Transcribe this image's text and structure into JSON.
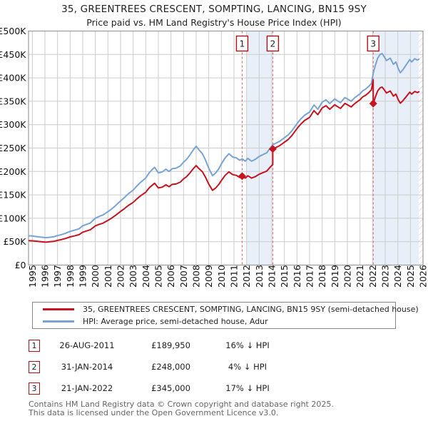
{
  "title": {
    "line1": "35, GREENTREES CRESCENT, SOMPTING, LANCING, BN15 9SY",
    "line2": "Price paid vs. HM Land Registry's House Price Index (HPI)"
  },
  "legend": {
    "items": [
      {
        "label": "35, GREENTREES CRESCENT, SOMPTING, LANCING, BN15 9SY (semi-detached house)",
        "color": "#c7131f"
      },
      {
        "label": "HPI: Average price, semi-detached house, Adur",
        "color": "#77a3d5"
      }
    ]
  },
  "transactions": [
    {
      "num": "1",
      "date": "26-AUG-2011",
      "price": "£189,950",
      "hpi_delta": "16% ↓ HPI"
    },
    {
      "num": "2",
      "date": "31-JAN-2014",
      "price": "£248,000",
      "hpi_delta": "4% ↓ HPI"
    },
    {
      "num": "3",
      "date": "21-JAN-2022",
      "price": "£345,000",
      "hpi_delta": "17% ↓ HPI"
    }
  ],
  "footer": {
    "line1": "Contains HM Land Registry data © Crown copyright and database right 2025.",
    "line2": "This data is licensed under the Open Government Licence v3.0."
  },
  "chart_data": {
    "type": "line",
    "title": "35, GREENTREES CRESCENT, SOMPTING, LANCING, BN15 9SY — Price paid vs. HPI",
    "x_min": 1994.7,
    "x_max": 2026,
    "y_min": 0,
    "y_max": 500,
    "y_unit": "£K",
    "x_ticks": [
      1995,
      1996,
      1997,
      1998,
      1999,
      2000,
      2001,
      2002,
      2003,
      2004,
      2005,
      2006,
      2007,
      2008,
      2009,
      2010,
      2011,
      2012,
      2013,
      2014,
      2015,
      2016,
      2017,
      2018,
      2019,
      2020,
      2021,
      2022,
      2023,
      2024,
      2025,
      2026
    ],
    "y_ticks": [
      {
        "value": 0,
        "label": "£0"
      },
      {
        "value": 50,
        "label": "£50K"
      },
      {
        "value": 100,
        "label": "£100K"
      },
      {
        "value": 150,
        "label": "£150K"
      },
      {
        "value": 200,
        "label": "£200K"
      },
      {
        "value": 250,
        "label": "£250K"
      },
      {
        "value": 300,
        "label": "£300K"
      },
      {
        "value": 350,
        "label": "£350K"
      },
      {
        "value": 400,
        "label": "£400K"
      },
      {
        "value": 450,
        "label": "£450K"
      },
      {
        "value": 500,
        "label": "£500K"
      }
    ],
    "grid": true,
    "legend_position": "bottom",
    "shaded_bands": [
      [
        2012.0,
        2014.08
      ],
      [
        2022.05,
        2025.67
      ]
    ],
    "hatch_band": [
      2025.67,
      2026
    ],
    "colors": {
      "price_line": "#c7131f",
      "hpi_line": "#77a3d5",
      "sale_dash": "#e05c5c",
      "band_fill": "#e9eff9",
      "grid": "#cccccc",
      "border": "#999999",
      "marker_box_border": "#b01116"
    },
    "sales": [
      {
        "label": "1",
        "year": 2011.65,
        "price_k": 189.95
      },
      {
        "label": "2",
        "year": 2014.08,
        "price_k": 248
      },
      {
        "label": "3",
        "year": 2022.05,
        "price_k": 345
      }
    ],
    "series": [
      {
        "name": "35, GREENTREES CRESCENT, SOMPTING, LANCING, BN15 9SY (semi-detached house)",
        "color": "#c7131f",
        "points": [
          [
            1994.75,
            52.3
          ],
          [
            1995.0,
            51.9
          ],
          [
            1995.3,
            51.0
          ],
          [
            1995.6,
            50.2
          ],
          [
            1995.9,
            49.4
          ],
          [
            1996.1,
            49.0
          ],
          [
            1996.4,
            49.8
          ],
          [
            1996.7,
            50.6
          ],
          [
            1997.0,
            52.7
          ],
          [
            1997.3,
            54.4
          ],
          [
            1997.6,
            56.5
          ],
          [
            1998.0,
            60.2
          ],
          [
            1998.4,
            62.8
          ],
          [
            1998.7,
            64.9
          ],
          [
            1999.0,
            70.3
          ],
          [
            1999.3,
            72.8
          ],
          [
            1999.6,
            75.3
          ],
          [
            2000.0,
            83.7
          ],
          [
            2000.3,
            87.0
          ],
          [
            2000.6,
            89.5
          ],
          [
            2001.0,
            95.4
          ],
          [
            2001.3,
            100.4
          ],
          [
            2001.6,
            106.3
          ],
          [
            2002.0,
            114.6
          ],
          [
            2002.3,
            120.5
          ],
          [
            2002.6,
            127.2
          ],
          [
            2003.0,
            133.9
          ],
          [
            2003.3,
            141.4
          ],
          [
            2003.6,
            148.1
          ],
          [
            2004.0,
            155.6
          ],
          [
            2004.3,
            165.7
          ],
          [
            2004.7,
            174.9
          ],
          [
            2005.0,
            164.8
          ],
          [
            2005.3,
            166.5
          ],
          [
            2005.6,
            171.5
          ],
          [
            2005.85,
            167.4
          ],
          [
            2006.1,
            172.4
          ],
          [
            2006.4,
            173.2
          ],
          [
            2006.75,
            177.4
          ],
          [
            2007.0,
            184.1
          ],
          [
            2007.25,
            189.1
          ],
          [
            2007.5,
            196.6
          ],
          [
            2007.8,
            206.7
          ],
          [
            2008.0,
            212.5
          ],
          [
            2008.2,
            206.7
          ],
          [
            2008.5,
            199.2
          ],
          [
            2008.75,
            187.4
          ],
          [
            2009.0,
            173.2
          ],
          [
            2009.3,
            159.8
          ],
          [
            2009.55,
            164.8
          ],
          [
            2009.8,
            172.4
          ],
          [
            2010.0,
            180.7
          ],
          [
            2010.3,
            191.6
          ],
          [
            2010.6,
            199.2
          ],
          [
            2010.9,
            193.3
          ],
          [
            2011.2,
            191.6
          ],
          [
            2011.45,
            187.4
          ],
          [
            2011.65,
            189.95
          ],
          [
            2011.9,
            185.8
          ],
          [
            2012.1,
            190.8
          ],
          [
            2012.4,
            185.8
          ],
          [
            2012.7,
            189.1
          ],
          [
            2013.0,
            194.1
          ],
          [
            2013.3,
            197.5
          ],
          [
            2013.6,
            200.8
          ],
          [
            2013.85,
            208.4
          ],
          [
            2014.08,
            215.1
          ],
          [
            2014.08,
            248.0
          ],
          [
            2014.3,
            250.9
          ],
          [
            2014.6,
            254.8
          ],
          [
            2015.0,
            262.5
          ],
          [
            2015.3,
            268.3
          ],
          [
            2015.6,
            277.0
          ],
          [
            2016.0,
            291.4
          ],
          [
            2016.3,
            301.1
          ],
          [
            2016.6,
            308.8
          ],
          [
            2017.0,
            315.6
          ],
          [
            2017.35,
            330.0
          ],
          [
            2017.65,
            321.3
          ],
          [
            2018.0,
            335.8
          ],
          [
            2018.3,
            340.6
          ],
          [
            2018.6,
            332.9
          ],
          [
            2018.8,
            337.8
          ],
          [
            2019.0,
            342.6
          ],
          [
            2019.2,
            338.7
          ],
          [
            2019.45,
            334.8
          ],
          [
            2019.8,
            345.5
          ],
          [
            2020.0,
            342.6
          ],
          [
            2020.3,
            337.8
          ],
          [
            2020.6,
            345.5
          ],
          [
            2020.85,
            350.3
          ],
          [
            2021.0,
            353.2
          ],
          [
            2021.2,
            359.0
          ],
          [
            2021.45,
            362.8
          ],
          [
            2021.7,
            368.6
          ],
          [
            2021.9,
            374.4
          ],
          [
            2022.05,
            395.7
          ],
          [
            2022.05,
            345.0
          ],
          [
            2022.2,
            357.6
          ],
          [
            2022.4,
            372.0
          ],
          [
            2022.6,
            378.7
          ],
          [
            2022.75,
            380.4
          ],
          [
            2022.9,
            375.3
          ],
          [
            2023.1,
            367.7
          ],
          [
            2023.4,
            372.0
          ],
          [
            2023.65,
            361.0
          ],
          [
            2023.85,
            365.2
          ],
          [
            2024.05,
            352.6
          ],
          [
            2024.2,
            345.9
          ],
          [
            2024.4,
            350.9
          ],
          [
            2024.7,
            361.0
          ],
          [
            2024.95,
            369.4
          ],
          [
            2025.1,
            365.2
          ],
          [
            2025.35,
            371.1
          ],
          [
            2025.55,
            368.6
          ],
          [
            2025.67,
            370.3
          ]
        ]
      },
      {
        "name": "HPI: Average price, semi-detached house, Adur",
        "color": "#77a3d5",
        "points": [
          [
            1994.75,
            62.5
          ],
          [
            1995.0,
            62.0
          ],
          [
            1995.3,
            61.0
          ],
          [
            1995.6,
            60.0
          ],
          [
            1995.9,
            59.0
          ],
          [
            1996.1,
            58.5
          ],
          [
            1996.4,
            59.5
          ],
          [
            1996.7,
            60.5
          ],
          [
            1997.0,
            63.0
          ],
          [
            1997.3,
            65.0
          ],
          [
            1997.6,
            67.5
          ],
          [
            1998.0,
            72.0
          ],
          [
            1998.4,
            75.0
          ],
          [
            1998.7,
            77.5
          ],
          [
            1999.0,
            84.0
          ],
          [
            1999.3,
            87.0
          ],
          [
            1999.6,
            90.0
          ],
          [
            2000.0,
            100.0
          ],
          [
            2000.3,
            104.0
          ],
          [
            2000.6,
            107.0
          ],
          [
            2001.0,
            114.0
          ],
          [
            2001.3,
            120.0
          ],
          [
            2001.6,
            127.0
          ],
          [
            2002.0,
            137.0
          ],
          [
            2002.3,
            144.0
          ],
          [
            2002.6,
            152.0
          ],
          [
            2003.0,
            160.0
          ],
          [
            2003.3,
            169.0
          ],
          [
            2003.6,
            177.0
          ],
          [
            2004.0,
            186.0
          ],
          [
            2004.3,
            198.0
          ],
          [
            2004.7,
            209.0
          ],
          [
            2005.0,
            197.0
          ],
          [
            2005.3,
            199.0
          ],
          [
            2005.6,
            205.0
          ],
          [
            2005.85,
            200.0
          ],
          [
            2006.1,
            206.0
          ],
          [
            2006.4,
            207.0
          ],
          [
            2006.75,
            212.0
          ],
          [
            2007.0,
            220.0
          ],
          [
            2007.25,
            226.0
          ],
          [
            2007.5,
            235.0
          ],
          [
            2007.8,
            247.0
          ],
          [
            2008.0,
            254.0
          ],
          [
            2008.2,
            247.0
          ],
          [
            2008.5,
            238.0
          ],
          [
            2008.75,
            224.0
          ],
          [
            2009.0,
            207.0
          ],
          [
            2009.3,
            191.0
          ],
          [
            2009.55,
            197.0
          ],
          [
            2009.8,
            206.0
          ],
          [
            2010.0,
            216.0
          ],
          [
            2010.3,
            229.0
          ],
          [
            2010.6,
            238.0
          ],
          [
            2010.9,
            231.0
          ],
          [
            2011.2,
            229.0
          ],
          [
            2011.45,
            224.0
          ],
          [
            2011.65,
            227.0
          ],
          [
            2011.9,
            222.0
          ],
          [
            2012.1,
            228.0
          ],
          [
            2012.4,
            222.0
          ],
          [
            2012.7,
            226.0
          ],
          [
            2013.0,
            232.0
          ],
          [
            2013.3,
            236.0
          ],
          [
            2013.6,
            240.0
          ],
          [
            2013.85,
            249.0
          ],
          [
            2014.08,
            257.0
          ],
          [
            2014.3,
            260.0
          ],
          [
            2014.6,
            264.0
          ],
          [
            2015.0,
            272.0
          ],
          [
            2015.3,
            278.0
          ],
          [
            2015.6,
            287.0
          ],
          [
            2016.0,
            302.0
          ],
          [
            2016.3,
            312.0
          ],
          [
            2016.6,
            320.0
          ],
          [
            2017.0,
            327.0
          ],
          [
            2017.35,
            342.0
          ],
          [
            2017.65,
            333.0
          ],
          [
            2018.0,
            348.0
          ],
          [
            2018.3,
            353.0
          ],
          [
            2018.6,
            345.0
          ],
          [
            2018.8,
            350.0
          ],
          [
            2019.0,
            355.0
          ],
          [
            2019.2,
            351.0
          ],
          [
            2019.45,
            347.0
          ],
          [
            2019.8,
            358.0
          ],
          [
            2020.0,
            355.0
          ],
          [
            2020.3,
            350.0
          ],
          [
            2020.6,
            358.0
          ],
          [
            2020.85,
            363.0
          ],
          [
            2021.0,
            366.0
          ],
          [
            2021.2,
            372.0
          ],
          [
            2021.45,
            376.0
          ],
          [
            2021.7,
            382.0
          ],
          [
            2021.9,
            388.0
          ],
          [
            2022.05,
            410.0
          ],
          [
            2022.2,
            425.0
          ],
          [
            2022.4,
            442.0
          ],
          [
            2022.6,
            450.0
          ],
          [
            2022.75,
            452.0
          ],
          [
            2022.9,
            446.0
          ],
          [
            2023.1,
            437.0
          ],
          [
            2023.4,
            442.0
          ],
          [
            2023.65,
            429.0
          ],
          [
            2023.85,
            434.0
          ],
          [
            2024.05,
            419.0
          ],
          [
            2024.2,
            411.0
          ],
          [
            2024.4,
            417.0
          ],
          [
            2024.7,
            429.0
          ],
          [
            2024.95,
            439.0
          ],
          [
            2025.1,
            434.0
          ],
          [
            2025.35,
            441.0
          ],
          [
            2025.55,
            438.0
          ],
          [
            2025.67,
            440.0
          ]
        ]
      }
    ]
  }
}
